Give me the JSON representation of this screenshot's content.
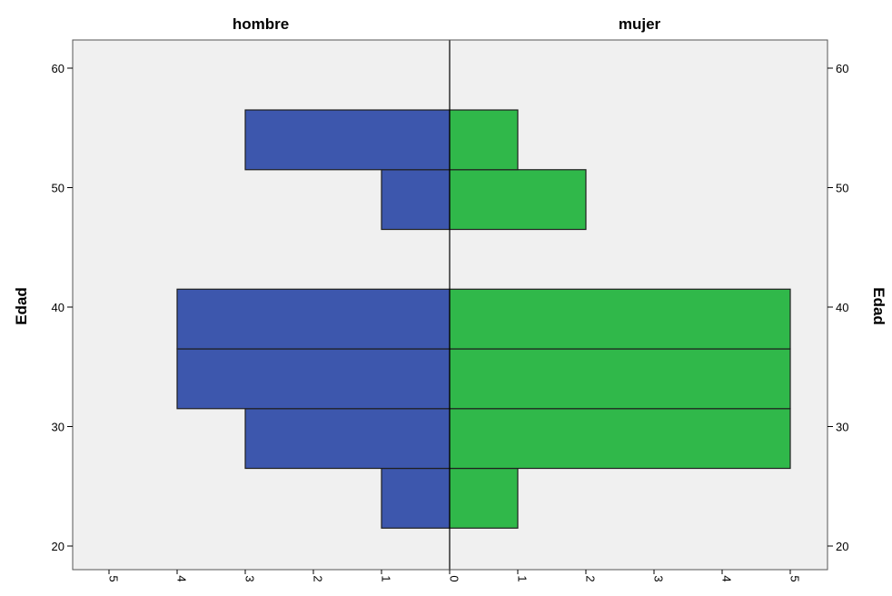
{
  "chart_data": {
    "type": "bar",
    "subtype": "population-pyramid",
    "panels": [
      "hombre",
      "mujer"
    ],
    "ylabel_left": "Edad",
    "ylabel_right": "Edad",
    "xlim": [
      0,
      5
    ],
    "ylim": [
      18,
      62
    ],
    "x_ticks": [
      "5",
      "4",
      "3",
      "2",
      "1",
      "0",
      "1",
      "2",
      "3",
      "4",
      "5"
    ],
    "y_ticks": [
      "20",
      "30",
      "40",
      "50",
      "60"
    ],
    "bin_width": 5,
    "bins": [
      {
        "from": 21.5,
        "to": 26.5,
        "hombre": 1,
        "mujer": 1
      },
      {
        "from": 26.5,
        "to": 31.5,
        "hombre": 3,
        "mujer": 5
      },
      {
        "from": 31.5,
        "to": 36.5,
        "hombre": 4,
        "mujer": 5
      },
      {
        "from": 36.5,
        "to": 41.5,
        "hombre": 4,
        "mujer": 5
      },
      {
        "from": 41.5,
        "to": 46.5,
        "hombre": 0,
        "mujer": 0
      },
      {
        "from": 46.5,
        "to": 51.5,
        "hombre": 1,
        "mujer": 2
      },
      {
        "from": 51.5,
        "to": 56.5,
        "hombre": 3,
        "mujer": 1
      }
    ],
    "colors": {
      "hombre": "#3d57ad",
      "mujer": "#30b84a",
      "plot_background": "#f0f0f0"
    },
    "grid": false,
    "legend": "none"
  }
}
